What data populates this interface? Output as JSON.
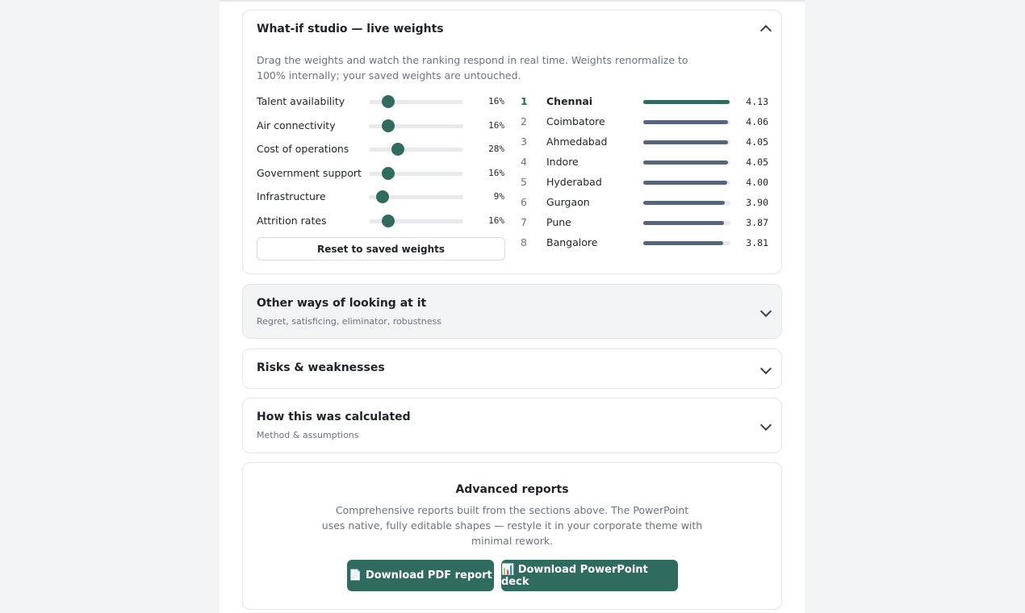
{
  "studio": {
    "title": "What-if studio — live weights",
    "description_lines": [
      "Drag the weights and watch the ranking respond in real time. Weights renormalize to",
      "100% internally; your saved weights are untouched."
    ],
    "weights": [
      {
        "label": "Talent availability",
        "weight": "16%"
      },
      {
        "label": "Air connectivity",
        "weight": "16%"
      },
      {
        "label": "Cost of operations",
        "weight": "28%"
      },
      {
        "label": "Government support",
        "weight": "16%"
      },
      {
        "label": "Infrastructure",
        "weight": "9%"
      },
      {
        "label": "Attrition rates",
        "weight": "16%"
      }
    ],
    "reset_button": "Reset to saved weights",
    "ranking": [
      {
        "rank": "1",
        "city": "Chennai",
        "score": "4.13"
      },
      {
        "rank": "2",
        "city": "Coimbatore",
        "score": "4.06"
      },
      {
        "rank": "3",
        "city": "Ahmedabad",
        "score": "4.05"
      },
      {
        "rank": "4",
        "city": "Indore",
        "score": "4.05"
      },
      {
        "rank": "5",
        "city": "Hyderabad",
        "score": "4.00"
      },
      {
        "rank": "6",
        "city": "Gurgaon",
        "score": "3.90"
      },
      {
        "rank": "7",
        "city": "Pune",
        "score": "3.87"
      },
      {
        "rank": "8",
        "city": "Bangalore",
        "score": "3.81"
      }
    ]
  },
  "sections": [
    {
      "title": "Other ways of looking at it",
      "subtitle": "Regret, satisficing, eliminator, robustness"
    },
    {
      "title": "Risks & weaknesses"
    },
    {
      "title": "How this was calculated",
      "subtitle": "Method & assumptions"
    }
  ],
  "reports": {
    "title": "Advanced reports",
    "description_lines": [
      "Comprehensive reports built from the sections above. The PowerPoint",
      "uses native, fully editable shapes — restyle it in your corporate theme with",
      "minimal rework."
    ],
    "buttons": [
      "📄 Download PDF report",
      "📊 Download PowerPoint deck"
    ]
  }
}
